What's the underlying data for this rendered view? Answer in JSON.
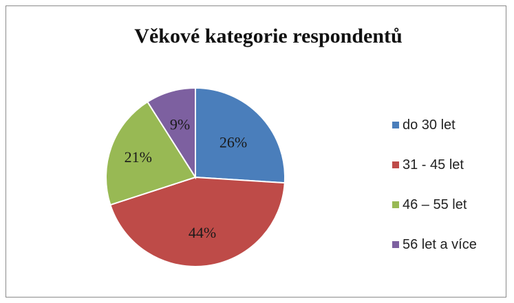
{
  "chart_data": {
    "type": "pie",
    "title": "Věkové kategorie respondentů",
    "categories": [
      "do 30 let",
      "31 - 45 let",
      "46 – 55 let",
      "56 let a více"
    ],
    "values": [
      26,
      44,
      21,
      9
    ],
    "labels": [
      "26%",
      "44%",
      "21%",
      "9%"
    ],
    "colors": [
      "#4a7ebb",
      "#be4b48",
      "#98b954",
      "#7d60a0"
    ],
    "legend_position": "right"
  }
}
